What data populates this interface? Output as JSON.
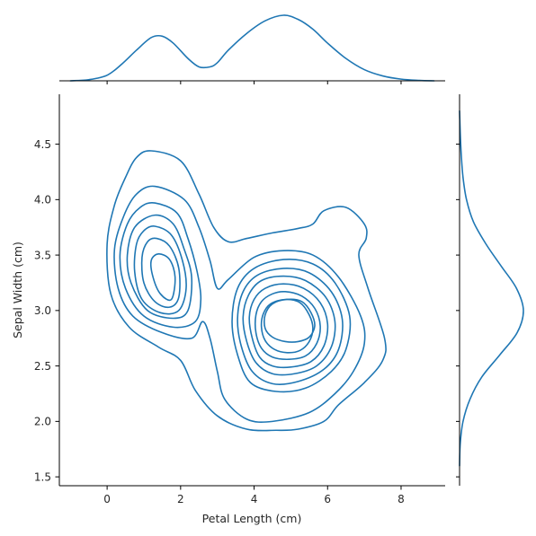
{
  "chart_data": {
    "type": "jointplot-kde",
    "xlabel": "Petal Length (cm)",
    "ylabel": "Sepal Width (cm)",
    "xlim": [
      -1.3,
      9.2
    ],
    "ylim": [
      1.42,
      4.95
    ],
    "x_ticks": [
      0,
      2,
      4,
      6,
      8
    ],
    "y_ticks": [
      1.5,
      2.0,
      2.5,
      3.0,
      3.5,
      4.0,
      4.5
    ],
    "x_tick_labels": [
      "0",
      "2",
      "4",
      "6",
      "8"
    ],
    "y_tick_labels": [
      "1.5",
      "2.0",
      "2.5",
      "3.0",
      "3.5",
      "4.0",
      "4.5"
    ],
    "color": "#1f77b4",
    "grid": false,
    "marginal_x": {
      "x": [
        -1.0,
        -0.5,
        0.0,
        0.4,
        0.8,
        1.2,
        1.5,
        1.8,
        2.2,
        2.5,
        2.8,
        3.0,
        3.3,
        3.8,
        4.3,
        4.8,
        5.2,
        5.6,
        6.0,
        6.5,
        7.0,
        7.5,
        8.0,
        8.5,
        8.9
      ],
      "density": [
        0.0,
        0.008,
        0.04,
        0.12,
        0.22,
        0.31,
        0.32,
        0.27,
        0.16,
        0.1,
        0.1,
        0.13,
        0.22,
        0.34,
        0.43,
        0.47,
        0.44,
        0.37,
        0.27,
        0.16,
        0.08,
        0.035,
        0.012,
        0.003,
        0.0
      ]
    },
    "marginal_y": {
      "y": [
        1.6,
        1.8,
        2.0,
        2.2,
        2.4,
        2.6,
        2.8,
        3.0,
        3.2,
        3.4,
        3.6,
        3.8,
        4.0,
        4.2,
        4.4,
        4.6,
        4.8
      ],
      "density": [
        0.0,
        0.01,
        0.05,
        0.15,
        0.32,
        0.58,
        0.83,
        0.92,
        0.82,
        0.6,
        0.38,
        0.2,
        0.1,
        0.05,
        0.025,
        0.01,
        0.0
      ]
    },
    "contours": [
      {
        "level": 1,
        "points": [
          [
            1.2,
            4.44
          ],
          [
            2.0,
            4.35
          ],
          [
            2.5,
            4.05
          ],
          [
            2.9,
            3.75
          ],
          [
            3.3,
            3.62
          ],
          [
            3.8,
            3.65
          ],
          [
            4.5,
            3.7
          ],
          [
            5.2,
            3.74
          ],
          [
            5.6,
            3.78
          ],
          [
            5.9,
            3.9
          ],
          [
            6.5,
            3.93
          ],
          [
            7.0,
            3.78
          ],
          [
            7.05,
            3.65
          ],
          [
            6.85,
            3.5
          ],
          [
            7.1,
            3.2
          ],
          [
            7.55,
            2.75
          ],
          [
            7.5,
            2.55
          ],
          [
            7.0,
            2.35
          ],
          [
            6.3,
            2.15
          ],
          [
            5.9,
            2.0
          ],
          [
            5.2,
            1.93
          ],
          [
            4.6,
            1.92
          ],
          [
            3.8,
            1.93
          ],
          [
            3.0,
            2.05
          ],
          [
            2.4,
            2.28
          ],
          [
            2.0,
            2.55
          ],
          [
            1.4,
            2.67
          ],
          [
            0.6,
            2.85
          ],
          [
            0.1,
            3.15
          ],
          [
            0.0,
            3.6
          ],
          [
            0.2,
            3.95
          ],
          [
            0.5,
            4.2
          ],
          [
            0.8,
            4.38
          ]
        ]
      },
      {
        "level": 2,
        "points": [
          [
            1.3,
            4.12
          ],
          [
            2.1,
            4.0
          ],
          [
            2.5,
            3.75
          ],
          [
            2.8,
            3.45
          ],
          [
            3.0,
            3.2
          ],
          [
            3.3,
            3.28
          ],
          [
            4.0,
            3.48
          ],
          [
            4.8,
            3.54
          ],
          [
            5.6,
            3.5
          ],
          [
            6.3,
            3.3
          ],
          [
            6.9,
            2.95
          ],
          [
            7.0,
            2.7
          ],
          [
            6.7,
            2.45
          ],
          [
            6.2,
            2.25
          ],
          [
            5.5,
            2.08
          ],
          [
            4.5,
            2.0
          ],
          [
            3.8,
            2.02
          ],
          [
            3.2,
            2.2
          ],
          [
            3.0,
            2.45
          ],
          [
            2.8,
            2.75
          ],
          [
            2.6,
            2.9
          ],
          [
            2.3,
            2.75
          ],
          [
            1.5,
            2.8
          ],
          [
            0.7,
            2.95
          ],
          [
            0.3,
            3.2
          ],
          [
            0.2,
            3.55
          ],
          [
            0.45,
            3.85
          ],
          [
            0.8,
            4.05
          ]
        ]
      },
      {
        "level": 3,
        "points": [
          [
            1.3,
            3.97
          ],
          [
            1.9,
            3.88
          ],
          [
            2.2,
            3.65
          ],
          [
            2.45,
            3.35
          ],
          [
            2.55,
            3.1
          ],
          [
            2.4,
            2.9
          ],
          [
            1.8,
            2.85
          ],
          [
            1.0,
            2.95
          ],
          [
            0.5,
            3.2
          ],
          [
            0.35,
            3.5
          ],
          [
            0.55,
            3.78
          ],
          [
            0.9,
            3.93
          ]
        ]
      },
      {
        "level": 4,
        "points": [
          [
            1.3,
            3.86
          ],
          [
            1.8,
            3.78
          ],
          [
            2.1,
            3.55
          ],
          [
            2.3,
            3.3
          ],
          [
            2.2,
            3.0
          ],
          [
            1.8,
            2.93
          ],
          [
            1.1,
            3.0
          ],
          [
            0.65,
            3.25
          ],
          [
            0.55,
            3.5
          ],
          [
            0.75,
            3.75
          ]
        ]
      },
      {
        "level": 5,
        "points": [
          [
            1.3,
            3.76
          ],
          [
            1.75,
            3.68
          ],
          [
            2.05,
            3.45
          ],
          [
            2.15,
            3.2
          ],
          [
            1.95,
            3.0
          ],
          [
            1.45,
            2.98
          ],
          [
            0.95,
            3.1
          ],
          [
            0.75,
            3.35
          ],
          [
            0.8,
            3.6
          ],
          [
            1.0,
            3.72
          ]
        ]
      },
      {
        "level": 6,
        "points": [
          [
            1.35,
            3.65
          ],
          [
            1.7,
            3.58
          ],
          [
            1.95,
            3.38
          ],
          [
            1.95,
            3.12
          ],
          [
            1.7,
            3.03
          ],
          [
            1.3,
            3.08
          ],
          [
            1.0,
            3.25
          ],
          [
            0.95,
            3.48
          ],
          [
            1.1,
            3.62
          ]
        ]
      },
      {
        "level": 7,
        "points": [
          [
            1.4,
            3.51
          ],
          [
            1.7,
            3.46
          ],
          [
            1.85,
            3.3
          ],
          [
            1.75,
            3.1
          ],
          [
            1.45,
            3.15
          ],
          [
            1.25,
            3.3
          ],
          [
            1.2,
            3.45
          ]
        ]
      },
      {
        "level": 8,
        "points": [
          [
            4.8,
            3.46
          ],
          [
            5.6,
            3.42
          ],
          [
            6.2,
            3.25
          ],
          [
            6.6,
            2.95
          ],
          [
            6.5,
            2.65
          ],
          [
            6.1,
            2.45
          ],
          [
            5.4,
            2.3
          ],
          [
            4.6,
            2.27
          ],
          [
            3.9,
            2.35
          ],
          [
            3.55,
            2.6
          ],
          [
            3.4,
            2.9
          ],
          [
            3.55,
            3.2
          ],
          [
            4.0,
            3.38
          ]
        ]
      },
      {
        "level": 9,
        "points": [
          [
            4.8,
            3.38
          ],
          [
            5.5,
            3.34
          ],
          [
            6.1,
            3.17
          ],
          [
            6.4,
            2.92
          ],
          [
            6.3,
            2.65
          ],
          [
            5.9,
            2.47
          ],
          [
            5.2,
            2.36
          ],
          [
            4.5,
            2.34
          ],
          [
            3.95,
            2.45
          ],
          [
            3.65,
            2.68
          ],
          [
            3.55,
            2.93
          ],
          [
            3.7,
            3.17
          ],
          [
            4.1,
            3.32
          ]
        ]
      },
      {
        "level": 10,
        "points": [
          [
            4.8,
            3.31
          ],
          [
            5.4,
            3.27
          ],
          [
            5.95,
            3.12
          ],
          [
            6.2,
            2.9
          ],
          [
            6.1,
            2.67
          ],
          [
            5.7,
            2.5
          ],
          [
            5.1,
            2.43
          ],
          [
            4.5,
            2.43
          ],
          [
            4.05,
            2.53
          ],
          [
            3.8,
            2.72
          ],
          [
            3.7,
            2.94
          ],
          [
            3.85,
            3.14
          ],
          [
            4.2,
            3.27
          ]
        ]
      },
      {
        "level": 11,
        "points": [
          [
            4.8,
            3.24
          ],
          [
            5.35,
            3.2
          ],
          [
            5.8,
            3.07
          ],
          [
            6.0,
            2.88
          ],
          [
            5.9,
            2.68
          ],
          [
            5.55,
            2.54
          ],
          [
            5.0,
            2.49
          ],
          [
            4.5,
            2.5
          ],
          [
            4.15,
            2.58
          ],
          [
            3.95,
            2.75
          ],
          [
            3.87,
            2.94
          ],
          [
            4.0,
            3.1
          ],
          [
            4.3,
            3.2
          ]
        ]
      },
      {
        "level": 12,
        "points": [
          [
            4.85,
            3.17
          ],
          [
            5.3,
            3.13
          ],
          [
            5.65,
            3.02
          ],
          [
            5.8,
            2.86
          ],
          [
            5.7,
            2.7
          ],
          [
            5.4,
            2.59
          ],
          [
            4.95,
            2.56
          ],
          [
            4.5,
            2.58
          ],
          [
            4.2,
            2.66
          ],
          [
            4.05,
            2.8
          ],
          [
            4.05,
            2.96
          ],
          [
            4.2,
            3.08
          ],
          [
            4.5,
            3.15
          ]
        ]
      },
      {
        "level": 13,
        "points": [
          [
            4.85,
            3.1
          ],
          [
            5.25,
            3.07
          ],
          [
            5.5,
            2.96
          ],
          [
            5.6,
            2.84
          ],
          [
            5.5,
            2.72
          ],
          [
            5.25,
            2.64
          ],
          [
            4.9,
            2.62
          ],
          [
            4.55,
            2.65
          ],
          [
            4.3,
            2.73
          ],
          [
            4.2,
            2.85
          ],
          [
            4.25,
            2.97
          ],
          [
            4.45,
            3.06
          ]
        ]
      },
      {
        "level": 14,
        "points": [
          [
            4.9,
            3.1
          ],
          [
            5.3,
            3.08
          ],
          [
            5.55,
            2.98
          ],
          [
            5.65,
            2.86
          ],
          [
            5.5,
            2.76
          ],
          [
            5.2,
            2.72
          ],
          [
            4.85,
            2.72
          ],
          [
            4.5,
            2.76
          ],
          [
            4.3,
            2.84
          ],
          [
            4.3,
            2.96
          ],
          [
            4.5,
            3.06
          ]
        ]
      }
    ]
  }
}
